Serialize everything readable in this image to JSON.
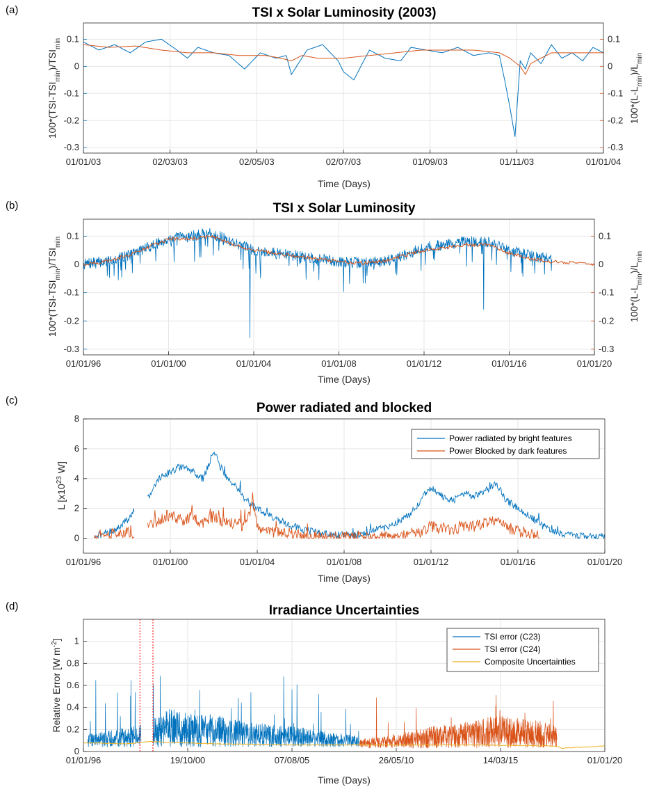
{
  "colors": {
    "blue": "#0072BD",
    "orange": "#D95319",
    "yellow": "#EDB120",
    "grid": "#e6e6e6",
    "axis": "#262626"
  },
  "chart_data": [
    {
      "panel_label": "(a)",
      "type": "line",
      "title": "TSI x Solar Luminosity (2003)",
      "xlabel": "Time (Days)",
      "ylabel_left": "100*(TSI-TSI_min)/TSI_min",
      "ylabel_right": "100*(L-L_min)/L_min",
      "x_ticks": [
        "01/01/03",
        "02/03/03",
        "02/05/03",
        "02/07/03",
        "01/09/03",
        "01/11/03",
        "01/01/04"
      ],
      "ylim_left": [
        -0.32,
        0.16
      ],
      "ylim_right": [
        -0.32,
        0.16
      ],
      "y_ticks_left": [
        "0.1",
        "0",
        "-0.1",
        "-0.2",
        "-0.3"
      ],
      "y_ticks_right": [
        "0.1",
        "0",
        "-0.1",
        "-0.2",
        "-0.3"
      ],
      "grid": true,
      "series": [
        {
          "axis": "left",
          "x": [
            0,
            0.03,
            0.06,
            0.09,
            0.12,
            0.15,
            0.18,
            0.2,
            0.22,
            0.25,
            0.28,
            0.31,
            0.34,
            0.37,
            0.39,
            0.4,
            0.43,
            0.46,
            0.49,
            0.5,
            0.52,
            0.55,
            0.58,
            0.61,
            0.63,
            0.66,
            0.69,
            0.72,
            0.75,
            0.78,
            0.8,
            0.81,
            0.82,
            0.83,
            0.84,
            0.85,
            0.86,
            0.88,
            0.9,
            0.92,
            0.94,
            0.96,
            0.98,
            1.0
          ],
          "values": [
            0.09,
            0.06,
            0.08,
            0.05,
            0.09,
            0.1,
            0.06,
            0.03,
            0.07,
            0.05,
            0.04,
            -0.01,
            0.05,
            0.03,
            0.04,
            -0.03,
            0.06,
            0.08,
            0.02,
            -0.02,
            -0.05,
            0.06,
            0.03,
            0.02,
            0.07,
            0.06,
            0.05,
            0.07,
            0.04,
            0.05,
            0.04,
            -0.05,
            -0.15,
            -0.26,
            0.02,
            -0.01,
            0.05,
            0.01,
            0.08,
            0.03,
            0.05,
            0.02,
            0.07,
            0.05
          ]
        },
        {
          "axis": "right",
          "x": [
            0,
            0.05,
            0.1,
            0.15,
            0.2,
            0.25,
            0.3,
            0.35,
            0.38,
            0.4,
            0.42,
            0.45,
            0.5,
            0.55,
            0.6,
            0.65,
            0.7,
            0.75,
            0.8,
            0.82,
            0.84,
            0.85,
            0.86,
            0.88,
            0.9,
            0.95,
            1.0
          ],
          "values": [
            0.08,
            0.07,
            0.075,
            0.06,
            0.05,
            0.05,
            0.04,
            0.04,
            0.03,
            0.02,
            0.04,
            0.03,
            0.03,
            0.04,
            0.05,
            0.06,
            0.06,
            0.06,
            0.05,
            0.03,
            0.0,
            -0.03,
            0.01,
            0.03,
            0.05,
            0.05,
            0.05
          ]
        }
      ]
    },
    {
      "panel_label": "(b)",
      "type": "line",
      "title": "TSI x Solar Luminosity",
      "xlabel": "Time (Days)",
      "ylabel_left": "100*(TSI-TSI_min)/TSI_min",
      "ylabel_right": "100*(L-L_min)/L_min",
      "x_ticks": [
        "01/01/96",
        "01/01/00",
        "01/01/04",
        "01/01/08",
        "01/01/12",
        "01/01/16",
        "01/01/20"
      ],
      "ylim_left": [
        -0.32,
        0.16
      ],
      "ylim_right": [
        -0.32,
        0.16
      ],
      "y_ticks_left": [
        "0.1",
        "0",
        "-0.1",
        "-0.2",
        "-0.3"
      ],
      "y_ticks_right": [
        "0.1",
        "0",
        "-0.1",
        "-0.2",
        "-0.3"
      ],
      "grid": true,
      "series": [
        {
          "axis": "left",
          "x": [
            1996.0,
            1997.0,
            1998.0,
            1999.0,
            2000.0,
            2001.0,
            2002.0,
            2003.0,
            2004.0,
            2005.0,
            2006.0,
            2007.0,
            2008.0,
            2009.0,
            2010.0,
            2011.0,
            2012.0,
            2013.0,
            2014.0,
            2015.0,
            2016.0,
            2017.0,
            2018.0
          ],
          "values": [
            0.0,
            0.01,
            0.03,
            0.06,
            0.09,
            0.1,
            0.11,
            0.08,
            0.05,
            0.04,
            0.03,
            0.02,
            0.01,
            0.005,
            0.01,
            0.03,
            0.06,
            0.07,
            0.08,
            0.08,
            0.05,
            0.03,
            0.02
          ]
        },
        {
          "axis": "right",
          "x": [
            1996.0,
            1997.0,
            1998.0,
            1999.0,
            2000.0,
            2001.0,
            2002.0,
            2003.0,
            2004.0,
            2005.0,
            2006.0,
            2007.0,
            2008.0,
            2009.0,
            2010.0,
            2011.0,
            2012.0,
            2013.0,
            2014.0,
            2015.0,
            2016.0,
            2017.0,
            2018.0,
            2019.0,
            2020.0
          ],
          "values": [
            0.0,
            0.01,
            0.03,
            0.06,
            0.09,
            0.09,
            0.1,
            0.07,
            0.05,
            0.04,
            0.03,
            0.02,
            0.01,
            0.005,
            0.01,
            0.03,
            0.05,
            0.06,
            0.07,
            0.07,
            0.04,
            0.02,
            0.01,
            0.005,
            0.0
          ]
        }
      ]
    },
    {
      "panel_label": "(c)",
      "type": "line",
      "title": "Power radiated and blocked",
      "xlabel": "Time (Days)",
      "ylabel": "L [x10^23 W]",
      "x_ticks": [
        "01/01/96",
        "01/01/00",
        "01/01/04",
        "01/01/08",
        "01/01/12",
        "01/01/16",
        "01/01/20"
      ],
      "ylim": [
        -1,
        8
      ],
      "y_ticks": [
        "8",
        "6",
        "4",
        "2",
        "0"
      ],
      "grid": true,
      "legend_position": "top-right",
      "series": [
        {
          "name": "Power radiated by bright features",
          "x": [
            1996.5,
            1997.0,
            1997.5,
            1998.0,
            1998.3,
            1999.0,
            1999.5,
            2000.0,
            2000.5,
            2001.0,
            2001.5,
            2002.0,
            2002.5,
            2003.0,
            2003.5,
            2004.0,
            2005.0,
            2006.0,
            2007.0,
            2008.0,
            2009.0,
            2010.0,
            2011.0,
            2011.5,
            2012.0,
            2012.5,
            2013.0,
            2013.5,
            2014.0,
            2014.5,
            2015.0,
            2015.5,
            2016.0,
            2016.5,
            2017.0,
            2017.5,
            2018.0,
            2019.0,
            2020.0
          ],
          "values": [
            0.2,
            0.3,
            0.6,
            1.2,
            1.8,
            2.8,
            4.0,
            4.5,
            4.8,
            4.5,
            4.0,
            5.8,
            4.2,
            3.5,
            2.5,
            2.0,
            1.2,
            0.6,
            0.3,
            0.2,
            0.3,
            0.8,
            1.5,
            2.5,
            3.5,
            2.8,
            2.5,
            3.0,
            2.8,
            3.2,
            3.6,
            2.5,
            2.0,
            1.5,
            1.0,
            0.5,
            0.3,
            0.1,
            0.1
          ]
        },
        {
          "name": "Power Blocked by dark features",
          "x": [
            1996.5,
            1997.0,
            1997.5,
            1998.0,
            1998.3,
            1999.0,
            1999.5,
            2000.0,
            2000.5,
            2001.0,
            2001.5,
            2002.0,
            2002.5,
            2003.0,
            2003.5,
            2003.8,
            2004.0,
            2005.0,
            2006.0,
            2007.0,
            2008.0,
            2009.0,
            2010.0,
            2011.0,
            2011.5,
            2012.0,
            2012.5,
            2013.0,
            2013.5,
            2014.0,
            2014.5,
            2015.0,
            2015.5,
            2016.0,
            2016.5,
            2017.0
          ],
          "values": [
            0.1,
            0.2,
            0.3,
            0.4,
            0.3,
            0.8,
            1.2,
            1.6,
            1.2,
            1.4,
            1.0,
            1.5,
            1.0,
            1.0,
            0.8,
            2.5,
            0.6,
            0.4,
            0.2,
            0.1,
            0.05,
            0.05,
            0.1,
            0.2,
            0.4,
            0.8,
            0.6,
            0.6,
            0.8,
            0.8,
            1.0,
            1.2,
            0.7,
            0.5,
            0.3,
            0.2
          ]
        }
      ]
    },
    {
      "panel_label": "(d)",
      "type": "line",
      "title": "Irradiance Uncertainties",
      "xlabel": "Time (Days)",
      "ylabel": "Relative Error [W m^-2]",
      "x_ticks": [
        "01/01/96",
        "19/10/00",
        "07/08/05",
        "26/05/10",
        "14/03/15",
        "01/01/20"
      ],
      "ylim": [
        0,
        1.2
      ],
      "y_ticks": [
        "1",
        "0.8",
        "0.6",
        "0.4",
        "0.2",
        "0"
      ],
      "grid": true,
      "legend_position": "top-right",
      "vertical_markers": [
        1998.6,
        1999.2
      ],
      "series": [
        {
          "name": "TSI error (C23)",
          "x": [
            1996.2,
            1997.0,
            1998.0,
            1998.5,
            1999.0,
            2000.0,
            2001.0,
            2002.0,
            2003.0,
            2004.0,
            2005.0,
            2006.0,
            2007.0,
            2008.0,
            2008.7
          ],
          "values": [
            0.12,
            0.15,
            0.18,
            0.2,
            0.25,
            0.35,
            0.3,
            0.3,
            0.25,
            0.22,
            0.2,
            0.18,
            0.15,
            0.12,
            0.1
          ]
        },
        {
          "name": "TSI error (C24)",
          "x": [
            2008.7,
            2009.5,
            2010.0,
            2011.0,
            2012.0,
            2013.0,
            2014.0,
            2015.0,
            2016.0,
            2017.0,
            2017.8
          ],
          "values": [
            0.08,
            0.1,
            0.12,
            0.15,
            0.2,
            0.22,
            0.25,
            0.3,
            0.28,
            0.25,
            0.2
          ]
        },
        {
          "name": "Composite Uncertainties",
          "x": [
            1996.0,
            1998.0,
            1999.0,
            2002.0,
            2006.0,
            2010.0,
            2014.0,
            2017.8,
            2018.0,
            2019.0,
            2020.0
          ],
          "values": [
            0.08,
            0.07,
            0.09,
            0.07,
            0.06,
            0.06,
            0.06,
            0.05,
            0.03,
            0.04,
            0.05
          ]
        }
      ]
    }
  ]
}
